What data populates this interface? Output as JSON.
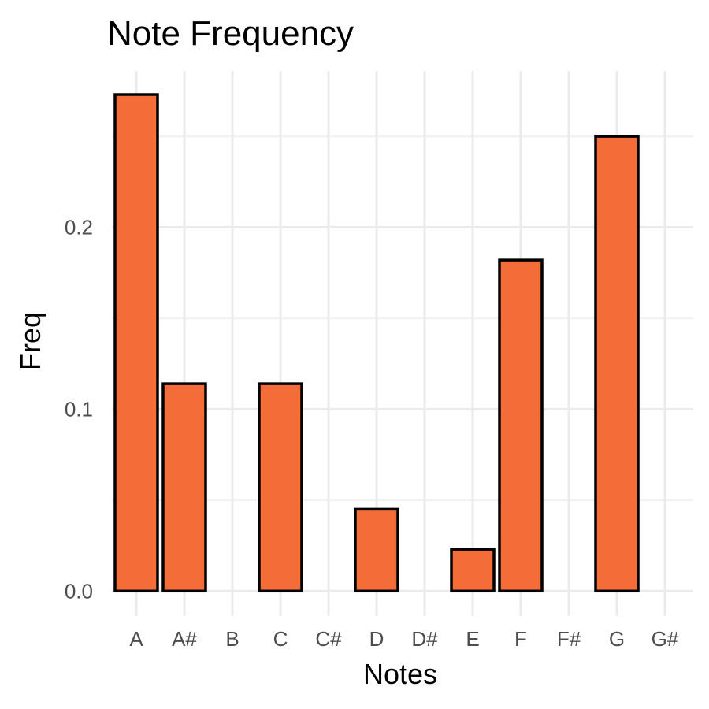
{
  "chart_data": {
    "type": "bar",
    "title": "Note Frequency",
    "xlabel": "Notes",
    "ylabel": "Freq",
    "categories": [
      "A",
      "A#",
      "B",
      "C",
      "C#",
      "D",
      "D#",
      "E",
      "F",
      "F#",
      "G",
      "G#"
    ],
    "values": [
      0.273,
      0.114,
      0.0,
      0.114,
      0.0,
      0.045,
      0.0,
      0.023,
      0.182,
      0.0,
      0.25,
      0.0
    ],
    "ylim": [
      -0.012,
      0.286
    ],
    "yticks": [
      0.0,
      0.1,
      0.2
    ],
    "ytick_labels": [
      "0.0",
      "0.1",
      "0.2"
    ],
    "grid": true,
    "bar_color": "#F46D39",
    "bar_outline": "#000000"
  }
}
